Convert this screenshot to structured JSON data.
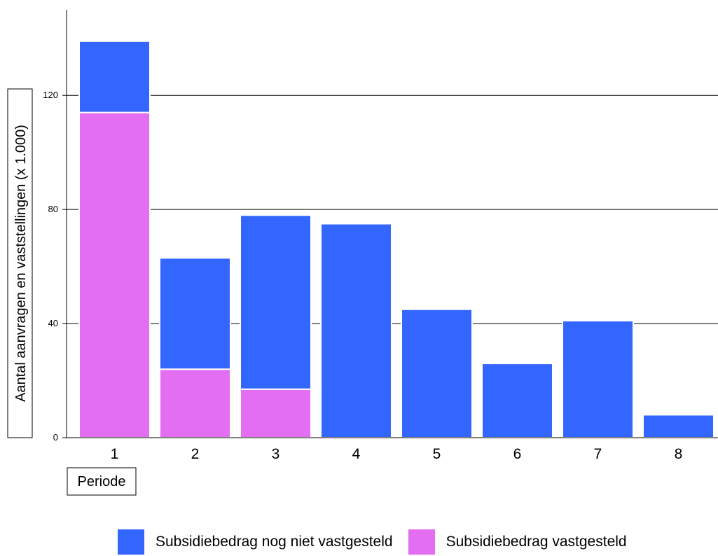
{
  "chart_data": {
    "type": "bar",
    "stacked": true,
    "xlabel": "Periode",
    "ylabel": "Aantal aanvragen en vaststellingen (x 1.000)",
    "categories": [
      "1",
      "2",
      "3",
      "4",
      "5",
      "6",
      "7",
      "8"
    ],
    "ylim": [
      0,
      150
    ],
    "yticks": [
      0,
      40,
      80,
      120
    ],
    "grid": true,
    "legend_position": "bottom",
    "series": [
      {
        "name": "Subsidiebedrag vastgesteld",
        "color": "#e46ef2",
        "values": [
          114,
          24,
          17,
          0,
          0,
          0,
          0,
          0
        ]
      },
      {
        "name": "Subsidiebedrag nog niet vastgesteld",
        "color": "#3366ff",
        "values": [
          25,
          39,
          61,
          75,
          45,
          26,
          41,
          8
        ]
      }
    ]
  },
  "legend": [
    {
      "label": "Subsidiebedrag nog niet vastgesteld",
      "color": "#3366ff"
    },
    {
      "label": "Subsidiebedrag vastgesteld",
      "color": "#e46ef2"
    }
  ]
}
